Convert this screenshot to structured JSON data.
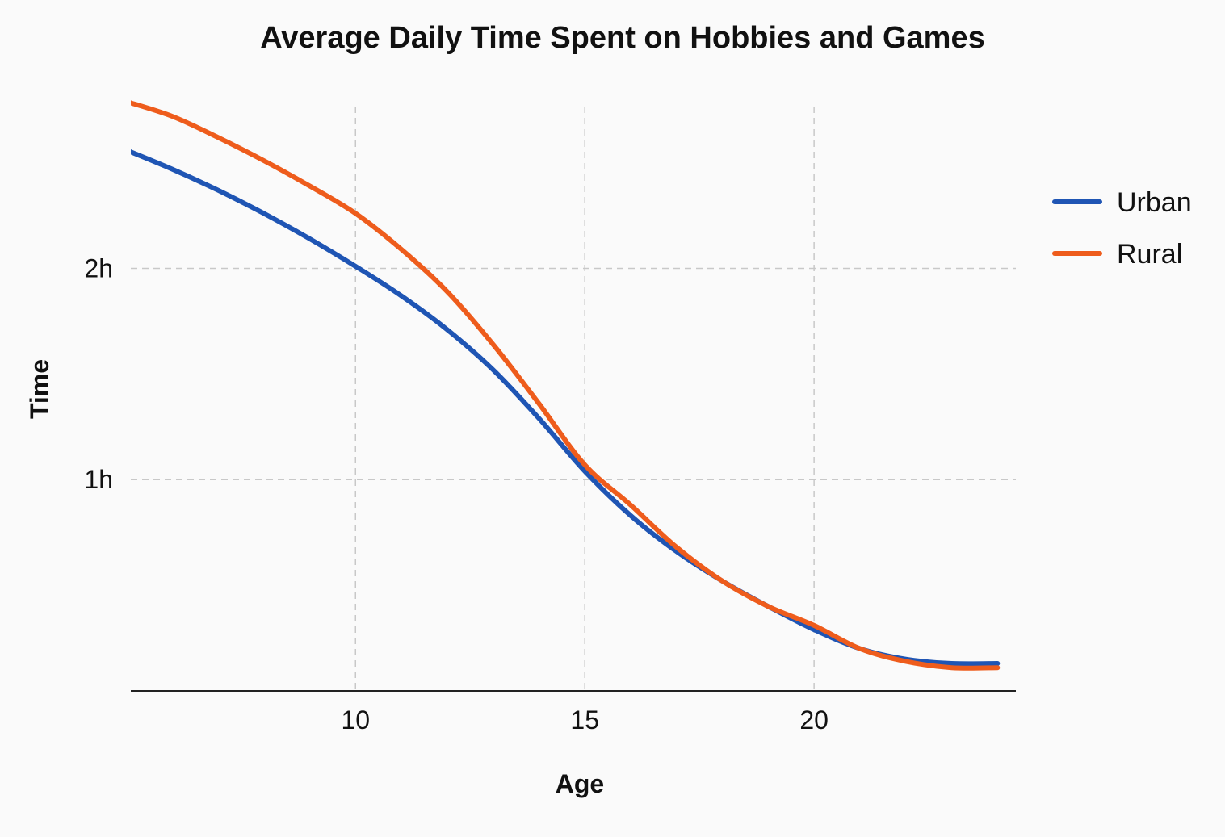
{
  "chart_data": {
    "type": "line",
    "title": "Average Daily Time Spent on Hobbies and Games",
    "xlabel": "Age",
    "ylabel": "Time",
    "xlim": [
      5.1,
      24.4
    ],
    "ylim": [
      0,
      2.85
    ],
    "x_ticks": [
      {
        "value": 10,
        "label": "10"
      },
      {
        "value": 15,
        "label": "15"
      },
      {
        "value": 20,
        "label": "20"
      }
    ],
    "y_ticks": [
      {
        "value": 1,
        "label": "1h"
      },
      {
        "value": 2,
        "label": "2h"
      }
    ],
    "grid": true,
    "legend_position": "right",
    "series": [
      {
        "name": "Urban",
        "color": "#1f55b4",
        "x": [
          5,
          6,
          7,
          8,
          9,
          10,
          11,
          12,
          13,
          14,
          15,
          16,
          17,
          18,
          19,
          20,
          21,
          22,
          23,
          24
        ],
        "y": [
          2.56,
          2.47,
          2.37,
          2.26,
          2.14,
          2.01,
          1.87,
          1.71,
          1.52,
          1.29,
          1.04,
          0.83,
          0.66,
          0.52,
          0.4,
          0.29,
          0.2,
          0.15,
          0.13,
          0.13
        ]
      },
      {
        "name": "Rural",
        "color": "#ee5c1c",
        "x": [
          5,
          6,
          7,
          8,
          9,
          10,
          11,
          12,
          13,
          14,
          15,
          16,
          17,
          18,
          19,
          20,
          21,
          22,
          23,
          24
        ],
        "y": [
          2.79,
          2.72,
          2.62,
          2.51,
          2.39,
          2.26,
          2.09,
          1.89,
          1.64,
          1.36,
          1.07,
          0.88,
          0.68,
          0.52,
          0.4,
          0.31,
          0.2,
          0.14,
          0.11,
          0.11
        ]
      }
    ]
  }
}
